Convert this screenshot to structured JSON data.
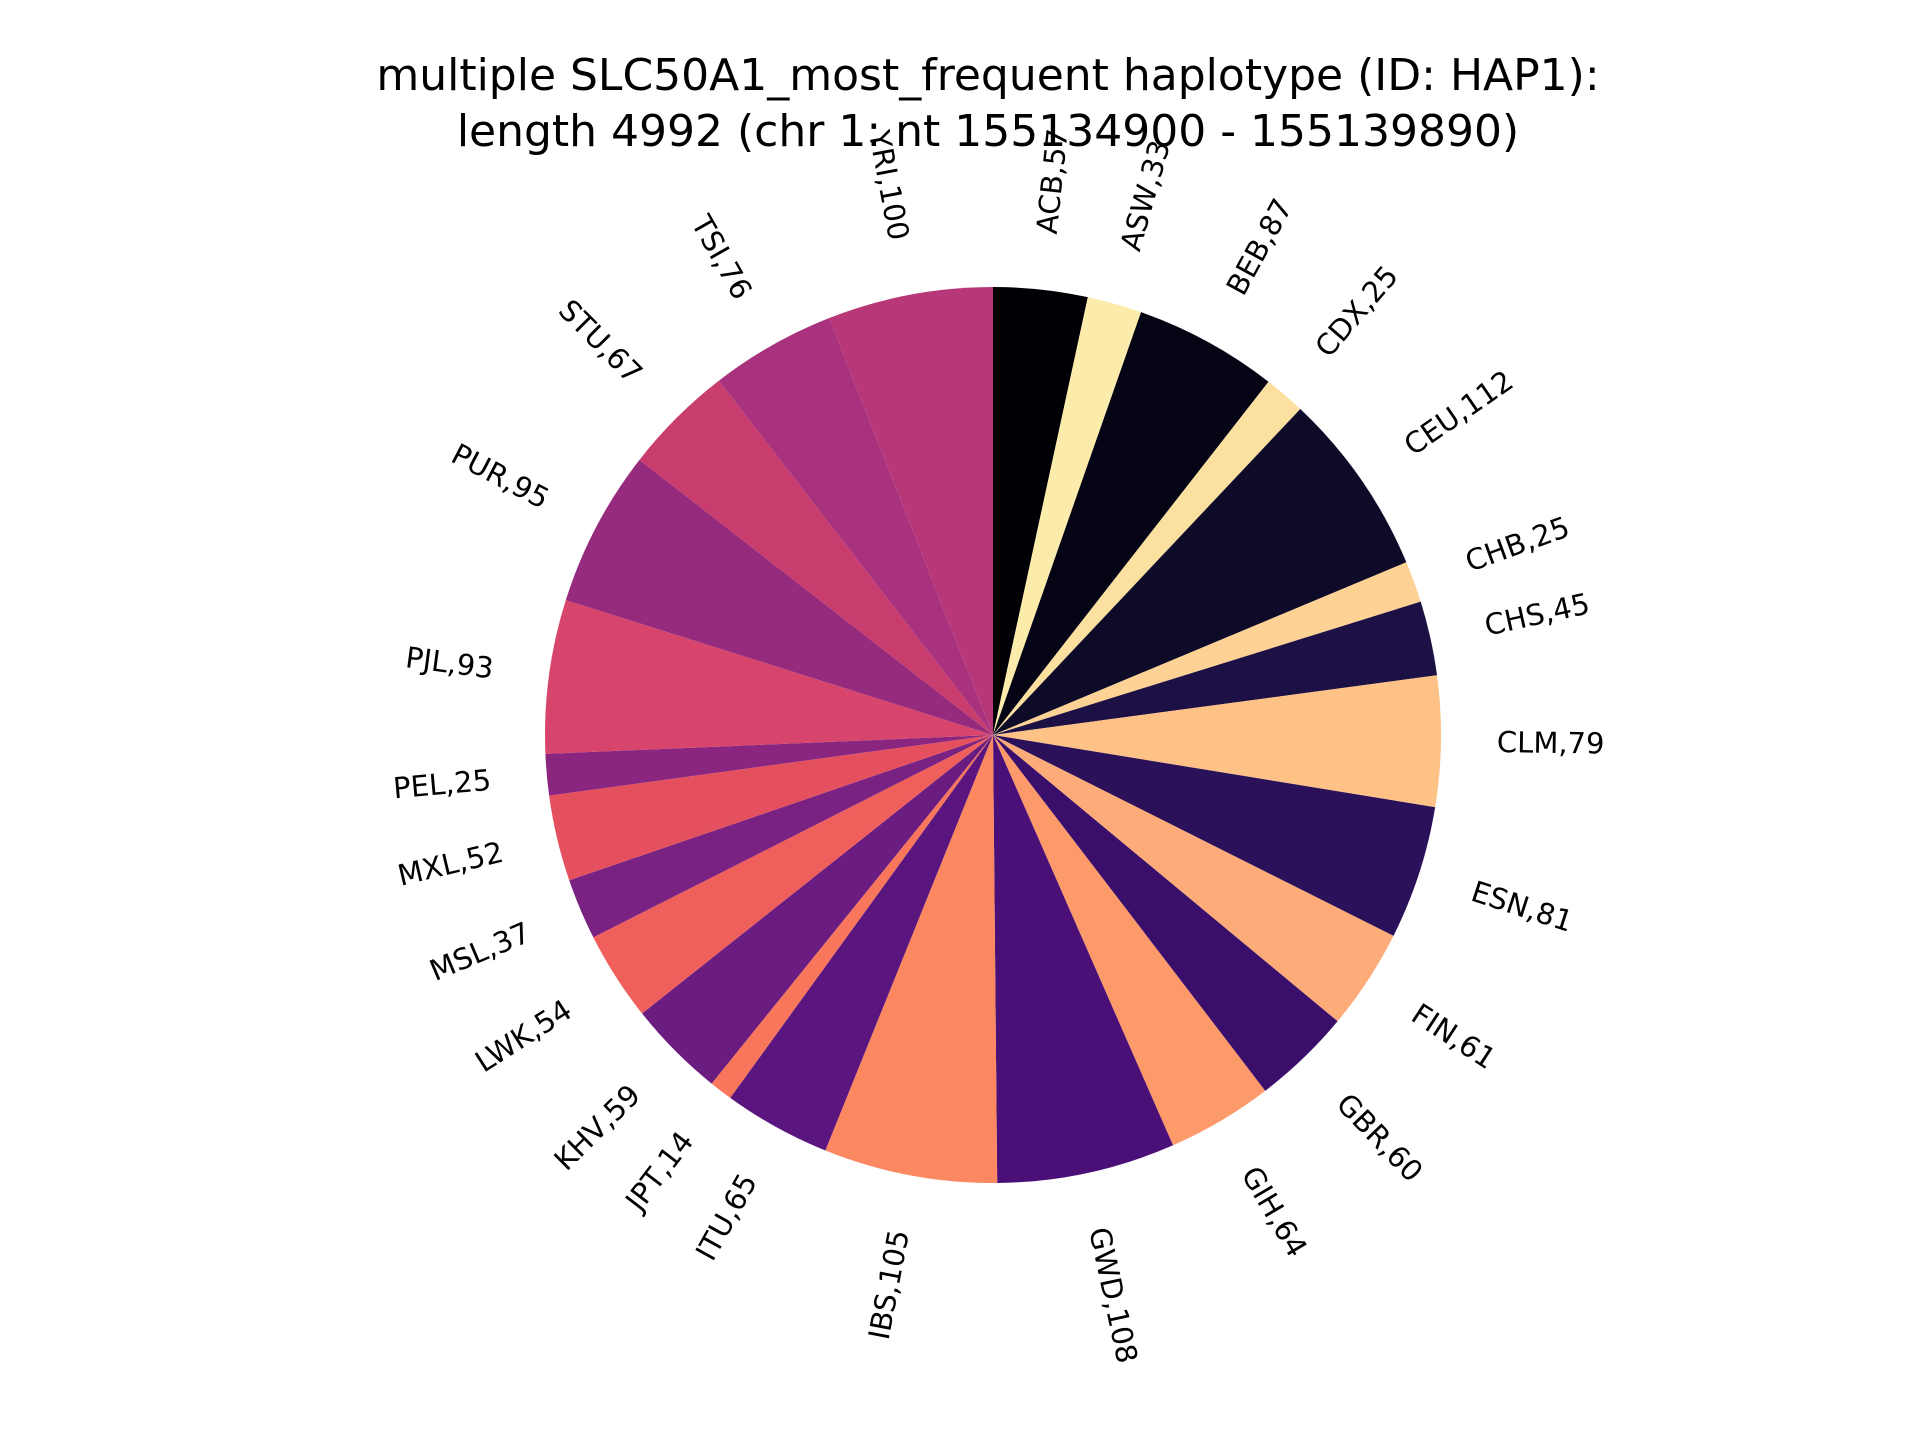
{
  "chart_data": {
    "type": "pie",
    "title": "multiple SLC50A1_most_frequent haplotype (ID: HAP1):\nlength 4992 (chr 1: nt 155134900 - 155139890)",
    "direction": "clockwise",
    "start_angle": "top (12 o'clock)",
    "slices": [
      {
        "label": "ACB,57",
        "category": "ACB",
        "value": 57,
        "color": "#000004"
      },
      {
        "label": "ASW,33",
        "category": "ASW",
        "value": 33,
        "color": "#fcecac"
      },
      {
        "label": "BEB,87",
        "category": "BEB",
        "value": 87,
        "color": "#040414"
      },
      {
        "label": "CDX,25",
        "category": "CDX",
        "value": 25,
        "color": "#fce0a0"
      },
      {
        "label": "CEU,112",
        "category": "CEU",
        "value": 112,
        "color": "#0d0b28"
      },
      {
        "label": "CHB,25",
        "category": "CHB",
        "value": 25,
        "color": "#fed295"
      },
      {
        "label": "CHS,45",
        "category": "CHS",
        "value": 45,
        "color": "#1c1044"
      },
      {
        "label": "CLM,79",
        "category": "CLM",
        "value": 79,
        "color": "#fec186"
      },
      {
        "label": "ESN,81",
        "category": "ESN",
        "value": 81,
        "color": "#2a115a"
      },
      {
        "label": "FIN,61",
        "category": "FIN",
        "value": 61,
        "color": "#fdab78"
      },
      {
        "label": "GBR,60",
        "category": "GBR",
        "value": 60,
        "color": "#3a0f6c"
      },
      {
        "label": "GIH,64",
        "category": "GIH",
        "value": 64,
        "color": "#fd9a6a"
      },
      {
        "label": "GWD,108",
        "category": "GWD",
        "value": 108,
        "color": "#4a1077"
      },
      {
        "label": "IBS,105",
        "category": "IBS",
        "value": 105,
        "color": "#fb8861"
      },
      {
        "label": "ITU,65",
        "category": "ITU",
        "value": 65,
        "color": "#5a167e"
      },
      {
        "label": "JPT,14",
        "category": "JPT",
        "value": 14,
        "color": "#f7765c"
      },
      {
        "label": "KHV,59",
        "category": "KHV",
        "value": 59,
        "color": "#6a1c81"
      },
      {
        "label": "LWK,54",
        "category": "LWK",
        "value": 54,
        "color": "#ef605c"
      },
      {
        "label": "MSL,37",
        "category": "MSL",
        "value": 37,
        "color": "#7a2282"
      },
      {
        "label": "MXL,52",
        "category": "MXL",
        "value": 52,
        "color": "#e5505f"
      },
      {
        "label": "PEL,25",
        "category": "PEL",
        "value": 25,
        "color": "#8b2680"
      },
      {
        "label": "PJL,93",
        "category": "PJL",
        "value": 93,
        "color": "#d8456c"
      },
      {
        "label": "PUR,95",
        "category": "PUR",
        "value": 95,
        "color": "#962b7d"
      },
      {
        "label": "STU,67",
        "category": "STU",
        "value": 67,
        "color": "#c93d6e"
      },
      {
        "label": "TSI,76",
        "category": "TSI",
        "value": 76,
        "color": "#a8327d"
      },
      {
        "label": "YRI,100",
        "category": "YRI",
        "value": 100,
        "color": "#b73778"
      }
    ]
  }
}
